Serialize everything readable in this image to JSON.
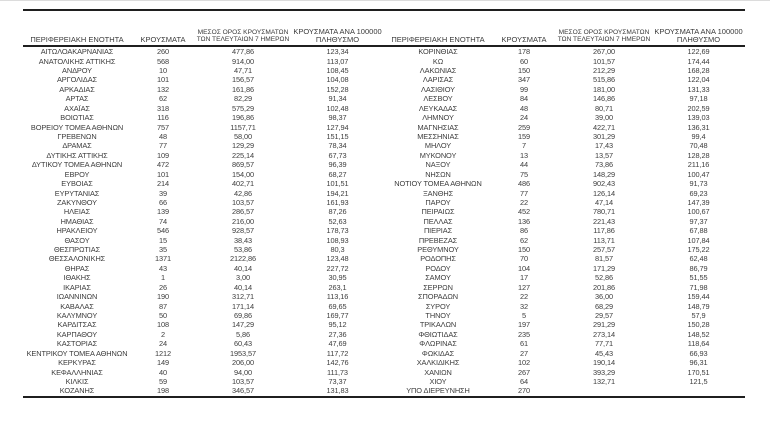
{
  "table": {
    "headers": {
      "region": "ΠΕΡΙΦΕΡΕΙΑΚΗ ΕΝΟΤΗΤΑ",
      "cases": "ΚΡΟΥΣΜΑΤΑ",
      "avg7_line1": "ΜΕΣΟΣ ΟΡΟΣ ΚΡΟΥΣΜΑΤΩΝ",
      "avg7_line2": "ΤΩΝ ΤΕΛΕΥΤΑΙΩΝ 7 ΗΜΕΡΩΝ",
      "per100k_line1": "ΚΡΟΥΣΜΑΤΑ ΑΝΑ 100000",
      "per100k_line2": "ΠΛΗΘΥΣΜΟ"
    },
    "left_rows": [
      [
        "ΑΙΤΩΛΟΑΚΑΡΝΑΝΙΑΣ",
        "260",
        "477,86",
        "123,34"
      ],
      [
        "ΑΝΑΤΟΛΙΚΗΣ ΑΤΤΙΚΗΣ",
        "568",
        "914,00",
        "113,07"
      ],
      [
        "ΑΝΔΡΟΥ",
        "10",
        "47,71",
        "108,45"
      ],
      [
        "ΑΡΓΟΛΙΔΑΣ",
        "101",
        "156,57",
        "104,08"
      ],
      [
        "ΑΡΚΑΔΙΑΣ",
        "132",
        "161,86",
        "152,28"
      ],
      [
        "ΑΡΤΑΣ",
        "62",
        "82,29",
        "91,34"
      ],
      [
        "ΑΧΑΪΑΣ",
        "318",
        "575,29",
        "102,48"
      ],
      [
        "ΒΟΙΩΤΙΑΣ",
        "116",
        "196,86",
        "98,37"
      ],
      [
        "ΒΟΡΕΙΟΥ ΤΟΜΕΑ ΑΘΗΝΩΝ",
        "757",
        "1157,71",
        "127,94"
      ],
      [
        "ΓΡΕΒΕΝΩΝ",
        "48",
        "58,00",
        "151,15"
      ],
      [
        "ΔΡΑΜΑΣ",
        "77",
        "129,29",
        "78,34"
      ],
      [
        "ΔΥΤΙΚΗΣ ΑΤΤΙΚΗΣ",
        "109",
        "225,14",
        "67,73"
      ],
      [
        "ΔΥΤΙΚΟΥ ΤΟΜΕΑ ΑΘΗΝΩΝ",
        "472",
        "869,57",
        "96,39"
      ],
      [
        "ΕΒΡΟΥ",
        "101",
        "154,00",
        "68,27"
      ],
      [
        "ΕΥΒΟΙΑΣ",
        "214",
        "402,71",
        "101,51"
      ],
      [
        "ΕΥΡΥΤΑΝΙΑΣ",
        "39",
        "42,86",
        "194,21"
      ],
      [
        "ΖΑΚΥΝΘΟΥ",
        "66",
        "103,57",
        "161,93"
      ],
      [
        "ΗΛΕΙΑΣ",
        "139",
        "286,57",
        "87,26"
      ],
      [
        "ΗΜΑΘΙΑΣ",
        "74",
        "216,00",
        "52,63"
      ],
      [
        "ΗΡΑΚΛΕΙΟΥ",
        "546",
        "928,57",
        "178,73"
      ],
      [
        "ΘΑΣΟΥ",
        "15",
        "38,43",
        "108,93"
      ],
      [
        "ΘΕΣΠΡΩΤΙΑΣ",
        "35",
        "53,86",
        "80,3"
      ],
      [
        "ΘΕΣΣΑΛΟΝΙΚΗΣ",
        "1371",
        "2122,86",
        "123,48"
      ],
      [
        "ΘΗΡΑΣ",
        "43",
        "40,14",
        "227,72"
      ],
      [
        "ΙΘΑΚΗΣ",
        "1",
        "3,00",
        "30,95"
      ],
      [
        "ΙΚΑΡΙΑΣ",
        "26",
        "40,14",
        "263,1"
      ],
      [
        "ΙΩΑΝΝΙΝΩΝ",
        "190",
        "312,71",
        "113,16"
      ],
      [
        "ΚΑΒΑΛΑΣ",
        "87",
        "171,14",
        "69,65"
      ],
      [
        "ΚΑΛΥΜΝΟΥ",
        "50",
        "69,86",
        "169,77"
      ],
      [
        "ΚΑΡΔΙΤΣΑΣ",
        "108",
        "147,29",
        "95,12"
      ],
      [
        "ΚΑΡΠΑΘΟΥ",
        "2",
        "5,86",
        "27,36"
      ],
      [
        "ΚΑΣΤΟΡΙΑΣ",
        "24",
        "60,43",
        "47,69"
      ],
      [
        "ΚΕΝΤΡΙΚΟΥ ΤΟΜΕΑ ΑΘΗΝΩΝ",
        "1212",
        "1953,57",
        "117,72"
      ],
      [
        "ΚΕΡΚΥΡΑΣ",
        "149",
        "206,00",
        "142,76"
      ],
      [
        "ΚΕΦΑΛΛΗΝΙΑΣ",
        "40",
        "94,00",
        "111,73"
      ],
      [
        "ΚΙΛΚΙΣ",
        "59",
        "103,57",
        "73,37"
      ],
      [
        "ΚΟΖΑΝΗΣ",
        "198",
        "346,57",
        "131,83"
      ]
    ],
    "right_rows": [
      [
        "ΚΟΡΙΝΘΙΑΣ",
        "178",
        "267,00",
        "122,69"
      ],
      [
        "ΚΩ",
        "60",
        "101,57",
        "174,44"
      ],
      [
        "ΛΑΚΩΝΙΑΣ",
        "150",
        "212,29",
        "168,28"
      ],
      [
        "ΛΑΡΙΣΑΣ",
        "347",
        "515,86",
        "122,04"
      ],
      [
        "ΛΑΣΙΘΙΟΥ",
        "99",
        "181,00",
        "131,33"
      ],
      [
        "ΛΕΣΒΟΥ",
        "84",
        "146,86",
        "97,18"
      ],
      [
        "ΛΕΥΚΑΔΑΣ",
        "48",
        "80,71",
        "202,59"
      ],
      [
        "ΛΗΜΝΟΥ",
        "24",
        "39,00",
        "139,03"
      ],
      [
        "ΜΑΓΝΗΣΙΑΣ",
        "259",
        "422,71",
        "136,31"
      ],
      [
        "ΜΕΣΣΗΝΙΑΣ",
        "159",
        "301,29",
        "99,4"
      ],
      [
        "ΜΗΛΟΥ",
        "7",
        "17,43",
        "70,48"
      ],
      [
        "ΜΥΚΟΝΟΥ",
        "13",
        "13,57",
        "128,28"
      ],
      [
        "ΝΑΞΟΥ",
        "44",
        "73,86",
        "211,16"
      ],
      [
        "ΝΗΣΩΝ",
        "75",
        "148,29",
        "100,47"
      ],
      [
        "ΝΟΤΙΟΥ ΤΟΜΕΑ ΑΘΗΝΩΝ",
        "486",
        "902,43",
        "91,73"
      ],
      [
        "ΞΑΝΘΗΣ",
        "77",
        "126,14",
        "69,23"
      ],
      [
        "ΠΑΡΟΥ",
        "22",
        "47,14",
        "147,39"
      ],
      [
        "ΠΕΙΡΑΙΩΣ",
        "452",
        "780,71",
        "100,67"
      ],
      [
        "ΠΕΛΛΑΣ",
        "136",
        "221,43",
        "97,37"
      ],
      [
        "ΠΙΕΡΙΑΣ",
        "86",
        "117,86",
        "67,88"
      ],
      [
        "ΠΡΕΒΕΖΑΣ",
        "62",
        "113,71",
        "107,84"
      ],
      [
        "ΡΕΘΥΜΝΟΥ",
        "150",
        "257,57",
        "175,22"
      ],
      [
        "ΡΟΔΟΠΗΣ",
        "70",
        "81,57",
        "62,48"
      ],
      [
        "ΡΟΔΟΥ",
        "104",
        "171,29",
        "86,79"
      ],
      [
        "ΣΑΜΟΥ",
        "17",
        "52,86",
        "51,55"
      ],
      [
        "ΣΕΡΡΩΝ",
        "127",
        "201,86",
        "71,98"
      ],
      [
        "ΣΠΟΡΑΔΩΝ",
        "22",
        "36,00",
        "159,44"
      ],
      [
        "ΣΥΡΟΥ",
        "32",
        "68,29",
        "148,79"
      ],
      [
        "ΤΗΝΟΥ",
        "5",
        "29,57",
        "57,9"
      ],
      [
        "ΤΡΙΚΑΛΩΝ",
        "197",
        "291,29",
        "150,28"
      ],
      [
        "ΦΘΙΩΤΙΔΑΣ",
        "235",
        "273,14",
        "148,52"
      ],
      [
        "ΦΛΩΡΙΝΑΣ",
        "61",
        "77,71",
        "118,64"
      ],
      [
        "ΦΩΚΙΔΑΣ",
        "27",
        "45,43",
        "66,93"
      ],
      [
        "ΧΑΛΚΙΔΙΚΗΣ",
        "102",
        "190,14",
        "96,31"
      ],
      [
        "ΧΑΝΙΩΝ",
        "267",
        "393,29",
        "170,51"
      ],
      [
        "ΧΙΟΥ",
        "64",
        "132,71",
        "121,5"
      ],
      [
        "ΥΠΟ ΔΙΕΡΕΥΝΗΣΗ",
        "270",
        "",
        ""
      ]
    ]
  },
  "colors": {
    "text": "#3d3d3d",
    "rule_line": "#1f1f1f",
    "background": "#ffffff"
  }
}
